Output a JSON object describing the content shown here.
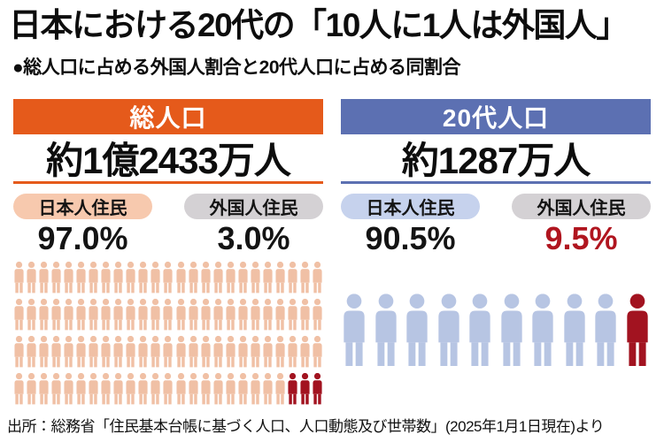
{
  "title": "日本における20代の「10人に1人は外国人」",
  "subtitle": "●総人口に占める外国人割合と20代人口に占める同割合",
  "source": "出所：総務省「住民基本台帳に基づく人口、人口動態及び世帯数」(2025年1月1日現在)より",
  "panels": [
    {
      "header": "総人口",
      "population": "約1億2433万人",
      "accent": "#e55a1b",
      "groups": [
        {
          "label": "日本人住民",
          "pill_color": "#f7c9ae",
          "value": "97.0%",
          "value_color": "#141414"
        },
        {
          "label": "外国人住民",
          "pill_color": "#d4d1d4",
          "value": "3.0%",
          "value_color": "#141414"
        }
      ],
      "pictogram": {
        "total": 100,
        "highlight": 3,
        "per_row": 25,
        "base_color": "#f0c0a5",
        "highlight_color": "#a21320"
      }
    },
    {
      "header": "20代人口",
      "population": "約1287万人",
      "accent": "#5c70b2",
      "groups": [
        {
          "label": "日本人住民",
          "pill_color": "#c6d2ed",
          "value": "90.5%",
          "value_color": "#141414"
        },
        {
          "label": "外国人住民",
          "pill_color": "#d4d1d4",
          "value": "9.5%",
          "value_color": "#b0151f"
        }
      ],
      "pictogram": {
        "total": 10,
        "highlight": 1,
        "per_row": 10,
        "base_color": "#b7c5e3",
        "highlight_color": "#a21320"
      }
    }
  ],
  "chart_data": [
    {
      "type": "pictogram",
      "title": "総人口",
      "total_label": "約1億2433万人",
      "categories": [
        "日本人住民",
        "外国人住民"
      ],
      "values": [
        97.0,
        3.0
      ],
      "unit": "%",
      "icons_total": 100,
      "icons_highlighted": 3,
      "highlight_meaning": "外国人住民",
      "legend_position": "above-icons"
    },
    {
      "type": "pictogram",
      "title": "20代人口",
      "total_label": "約1287万人",
      "categories": [
        "日本人住民",
        "外国人住民"
      ],
      "values": [
        90.5,
        9.5
      ],
      "unit": "%",
      "icons_total": 10,
      "icons_highlighted": 1,
      "highlight_meaning": "外国人住民",
      "legend_position": "above-icons"
    }
  ]
}
